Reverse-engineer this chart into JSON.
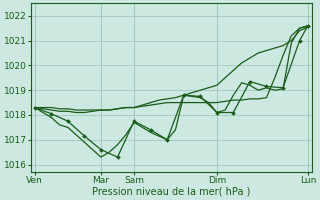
{
  "background_color": "#cce8e0",
  "grid_color": "#9ec8c0",
  "line_color": "#1a5c1a",
  "marker_color": "#1a5c1a",
  "xlabel": "Pression niveau de la mer( hPa )",
  "ylim": [
    1015.7,
    1022.5
  ],
  "yticks": [
    1016,
    1017,
    1018,
    1019,
    1020,
    1021,
    1022
  ],
  "day_labels": [
    "Ven",
    "",
    "Mar",
    "Sam",
    "",
    "Dim",
    "",
    "Lun"
  ],
  "tick_label_positions": [
    0,
    8,
    12,
    22,
    33
  ],
  "tick_labels": [
    "Ven",
    "Mar",
    "Sam",
    "Dim",
    "Lun"
  ],
  "vline_positions": [
    0,
    8,
    12,
    22,
    33
  ],
  "series": [
    {
      "x": [
        0,
        1,
        2,
        3,
        4,
        5,
        6,
        7,
        8,
        9,
        10,
        11,
        12,
        13,
        14,
        15,
        16,
        17,
        18,
        19,
        20,
        21,
        22,
        23,
        24,
        25,
        26,
        27,
        28,
        29,
        30,
        31,
        32,
        33
      ],
      "y": [
        1018.3,
        1018.3,
        1018.3,
        1018.25,
        1018.25,
        1018.2,
        1018.2,
        1018.2,
        1018.2,
        1018.2,
        1018.25,
        1018.3,
        1018.3,
        1018.35,
        1018.4,
        1018.45,
        1018.5,
        1018.5,
        1018.5,
        1018.5,
        1018.5,
        1018.5,
        1018.5,
        1018.55,
        1018.6,
        1018.6,
        1018.65,
        1018.65,
        1018.7,
        1019.5,
        1020.4,
        1021.2,
        1021.5,
        1021.6
      ]
    },
    {
      "x": [
        0,
        1,
        2,
        3,
        4,
        5,
        6,
        7,
        8,
        9,
        10,
        11,
        12,
        13,
        14,
        15,
        16,
        17,
        18,
        19,
        20,
        21,
        22,
        23,
        24,
        25,
        26,
        27,
        28,
        29,
        30,
        31,
        32,
        33
      ],
      "y": [
        1018.3,
        1018.25,
        1018.2,
        1018.15,
        1018.15,
        1018.1,
        1018.1,
        1018.15,
        1018.2,
        1018.2,
        1018.25,
        1018.3,
        1018.3,
        1018.4,
        1018.5,
        1018.6,
        1018.65,
        1018.7,
        1018.8,
        1018.9,
        1019.0,
        1019.1,
        1019.2,
        1019.5,
        1019.8,
        1020.1,
        1020.3,
        1020.5,
        1020.6,
        1020.7,
        1020.8,
        1021.0,
        1021.4,
        1021.55
      ]
    },
    {
      "x": [
        0,
        1,
        2,
        3,
        4,
        5,
        6,
        7,
        8,
        9,
        10,
        11,
        12,
        13,
        14,
        15,
        16,
        17,
        18,
        19,
        20,
        21,
        22,
        23,
        24,
        25,
        26,
        27,
        28,
        29,
        30,
        31,
        32,
        33
      ],
      "y": [
        1018.3,
        1018.1,
        1017.9,
        1017.6,
        1017.5,
        1017.2,
        1016.9,
        1016.6,
        1016.3,
        1016.5,
        1016.8,
        1017.2,
        1017.7,
        1017.5,
        1017.3,
        1017.15,
        1017.0,
        1017.4,
        1018.8,
        1018.75,
        1018.7,
        1018.5,
        1018.1,
        1018.2,
        1018.8,
        1019.3,
        1019.2,
        1019.0,
        1019.1,
        1019.0,
        1019.05,
        1020.9,
        1021.5,
        1021.6
      ]
    },
    {
      "x": [
        0,
        2,
        4,
        6,
        8,
        10,
        12,
        14,
        16,
        18,
        20,
        22,
        24,
        26,
        28,
        30,
        32,
        33
      ],
      "y": [
        1018.3,
        1018.05,
        1017.75,
        1017.15,
        1016.6,
        1016.3,
        1017.75,
        1017.4,
        1017.0,
        1018.8,
        1018.75,
        1018.1,
        1018.1,
        1019.35,
        1019.15,
        1019.1,
        1021.0,
        1021.6
      ]
    }
  ]
}
